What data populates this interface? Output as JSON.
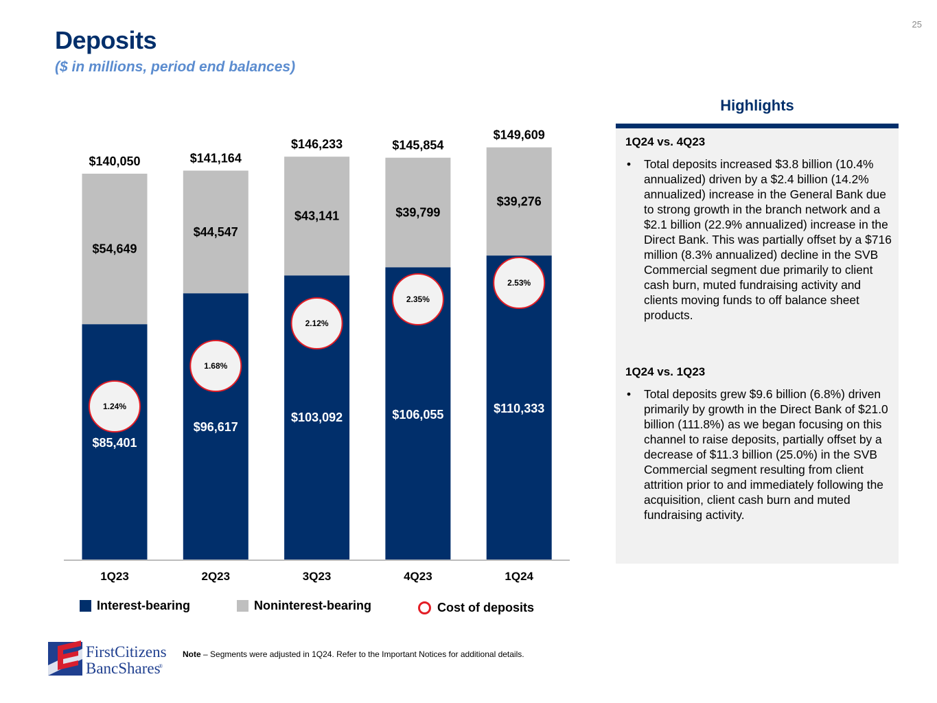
{
  "page_number": "25",
  "header": {
    "title": "Deposits",
    "subtitle": "($ in millions, period end balances)"
  },
  "colors": {
    "interest_bearing": "#012f6b",
    "noninterest_bearing": "#bfbfbf",
    "cost_ring": "#e31e26",
    "cost_fill": "#f2f2f2",
    "title": "#012f6b",
    "subtitle": "#5b8ccf"
  },
  "chart_data": {
    "type": "bar",
    "stacked": true,
    "title": "Deposits",
    "subtitle": "($ in millions, period end balances)",
    "xlabel": "",
    "ylabel": "",
    "ylim": [
      0,
      150000
    ],
    "grid": false,
    "categories": [
      "1Q23",
      "2Q23",
      "3Q23",
      "4Q23",
      "1Q24"
    ],
    "series": [
      {
        "name": "Interest-bearing",
        "values": [
          85401,
          96617,
          103092,
          106055,
          110333
        ],
        "labels": [
          "$85,401",
          "$96,617",
          "$103,092",
          "$106,055",
          "$110,333"
        ]
      },
      {
        "name": "Noninterest-bearing",
        "values": [
          54649,
          44547,
          43141,
          39799,
          39276
        ],
        "labels": [
          "$54,649",
          "$44,547",
          "$43,141",
          "$39,799",
          "$39,276"
        ]
      }
    ],
    "totals": [
      140050,
      141164,
      146233,
      145854,
      149609
    ],
    "total_labels": [
      "$140,050",
      "$141,164",
      "$146,233",
      "$145,854",
      "$149,609"
    ],
    "cost_of_deposits": {
      "name": "Cost of deposits",
      "values": [
        1.24,
        1.68,
        2.12,
        2.35,
        2.53
      ],
      "labels": [
        "1.24%",
        "1.68%",
        "2.12%",
        "2.35%",
        "2.53%"
      ]
    },
    "legend": {
      "placement": "bottom",
      "items": [
        "Interest-bearing",
        "Noninterest-bearing",
        "Cost of deposits"
      ]
    }
  },
  "highlights": {
    "title": "Highlights",
    "sections": [
      {
        "heading": "1Q24 vs. 4Q23",
        "bullet": "Total deposits increased $3.8 billion (10.4% annualized) driven by a $2.4 billion (14.2% annualized) increase in the General Bank due to strong growth in the branch network and a $2.1 billion (22.9% annualized) increase in the Direct Bank. This was partially offset by a $716 million (8.3% annualized) decline in the SVB Commercial segment due primarily to client cash burn, muted fundraising activity and clients moving funds to off balance sheet products."
      },
      {
        "heading": "1Q24 vs. 1Q23",
        "bullet": "Total deposits grew $9.6 billion (6.8%) driven primarily by growth in the Direct Bank of $21.0 billion (111.8%) as we began focusing on this channel to raise deposits, partially offset by a decrease of $11.3 billion (25.0%) in the SVB Commercial segment resulting from client attrition prior to and immediately following the acquisition, client cash burn and muted fundraising activity."
      }
    ]
  },
  "footer": {
    "logo_line1": "FirstCitizens",
    "logo_line2": "BancShares",
    "logo_mark": "®",
    "note_label": "Note",
    "note_text": " – Segments were adjusted in 1Q24. Refer to the Important Notices for additional details."
  }
}
